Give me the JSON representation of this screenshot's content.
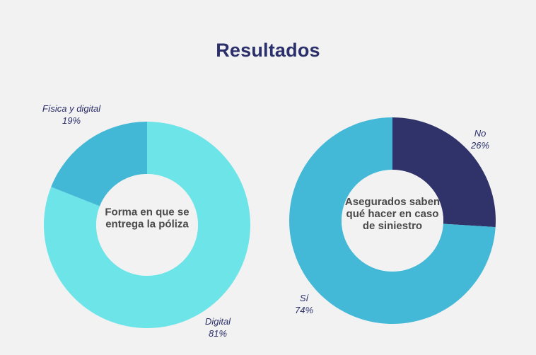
{
  "title": "Resultados",
  "chart_data": [
    {
      "type": "pie",
      "variant": "donut",
      "center_label": [
        "Forma en que se",
        "entrega la póliza"
      ],
      "slices": [
        {
          "name": "Digital",
          "value": 81,
          "value_label": "81%",
          "color": "#6ce4e8"
        },
        {
          "name": "Física y digital",
          "value": 19,
          "value_label": "19%",
          "color": "#43b7d6"
        }
      ]
    },
    {
      "type": "pie",
      "variant": "donut",
      "center_label": [
        "Asegurados saben",
        "qué hacer en caso",
        "de siniestro"
      ],
      "slices": [
        {
          "name": "No",
          "value": 26,
          "value_label": "26%",
          "color": "#2f3369"
        },
        {
          "name": "Sí",
          "value": 74,
          "value_label": "74%",
          "color": "#43b8d7"
        }
      ]
    }
  ]
}
